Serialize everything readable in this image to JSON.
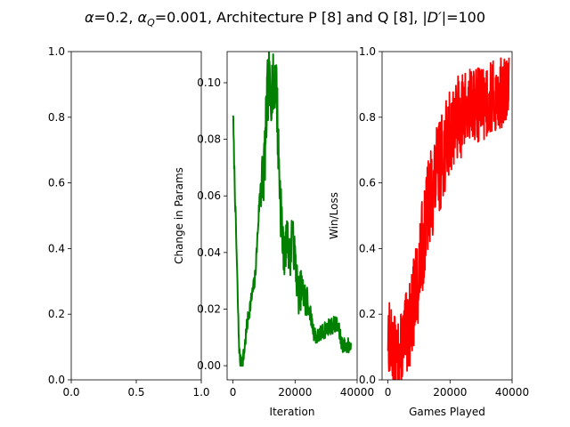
{
  "figure": {
    "title_parts": {
      "alpha": "α",
      "alpha_value": "=0.2, ",
      "alphaq": "α",
      "alphaq_sub": "Q",
      "alphaq_value": "=0.001, Architecture P [8] and Q [8], |",
      "dprime": "D′",
      "dprime_value": "|=100"
    }
  },
  "chart_data": [
    {
      "type": "line",
      "title": "",
      "xlabel": "",
      "ylabel": "",
      "xlim": [
        0,
        1
      ],
      "ylim": [
        0,
        1
      ],
      "xticks": [
        "0.0",
        "0.5",
        "1.0"
      ],
      "yticks": [
        "0.0",
        "0.2",
        "0.4",
        "0.6",
        "0.8",
        "1.0"
      ],
      "series": []
    },
    {
      "type": "line",
      "title": "",
      "xlabel": "Iteration",
      "ylabel": "Change in Params",
      "xlim": [
        -1900,
        40000
      ],
      "ylim": [
        -0.005,
        0.111
      ],
      "xticks": [
        "0",
        "20000",
        "40000"
      ],
      "yticks": [
        "0.00",
        "0.02",
        "0.04",
        "0.06",
        "0.08",
        "0.10"
      ],
      "color": "#008000",
      "series": [
        {
          "x": [
            0,
            300,
            600,
            900,
            1200,
            1500,
            1800,
            2100,
            2400,
            2700,
            3000,
            3500,
            4000,
            4500,
            5000,
            5500,
            6000,
            6500,
            7000,
            7500,
            8000,
            8500,
            9000,
            9500,
            10000,
            10500,
            11000,
            11500,
            12000,
            12500,
            13000,
            13500,
            14000,
            14500,
            15000,
            15500,
            16000,
            16500,
            17000,
            17500,
            18000,
            18500,
            19000,
            19500,
            20000,
            21000,
            22000,
            23000,
            24000,
            25000,
            26000,
            27000,
            28000,
            29000,
            30000,
            31000,
            32000,
            33000,
            34000,
            35000,
            36000,
            37000,
            38000
          ],
          "y": [
            0.09,
            0.075,
            0.062,
            0.05,
            0.038,
            0.025,
            0.012,
            0.004,
            0.001,
            0.0,
            0.001,
            0.004,
            0.009,
            0.014,
            0.018,
            0.021,
            0.024,
            0.027,
            0.03,
            0.038,
            0.048,
            0.058,
            0.066,
            0.065,
            0.07,
            0.08,
            0.095,
            0.1,
            0.095,
            0.1,
            0.098,
            0.102,
            0.1,
            0.08,
            0.065,
            0.055,
            0.044,
            0.038,
            0.042,
            0.046,
            0.04,
            0.038,
            0.05,
            0.042,
            0.038,
            0.025,
            0.027,
            0.024,
            0.022,
            0.018,
            0.012,
            0.01,
            0.011,
            0.012,
            0.013,
            0.014,
            0.014,
            0.015,
            0.013,
            0.008,
            0.007,
            0.007,
            0.007
          ]
        }
      ]
    },
    {
      "type": "line",
      "title": "",
      "xlabel": "Games Played",
      "ylabel": "Win/Loss",
      "xlim": [
        -1900,
        40000
      ],
      "ylim": [
        0,
        1
      ],
      "xticks": [
        "0",
        "20000",
        "40000"
      ],
      "yticks": [
        "0.0",
        "0.2",
        "0.4",
        "0.6",
        "0.8",
        "1.0"
      ],
      "color": "#ff0000",
      "series": [
        {
          "x": [
            0,
            1000,
            2000,
            3000,
            4000,
            5000,
            6000,
            7000,
            8000,
            9000,
            10000,
            11000,
            12000,
            13000,
            14000,
            15000,
            16000,
            17000,
            18000,
            19000,
            20000,
            21000,
            22000,
            23000,
            24000,
            25000,
            26000,
            27000,
            28000,
            29000,
            30000,
            31000,
            32000,
            33000,
            34000,
            35000,
            36000,
            37000,
            38000,
            39000
          ],
          "y": [
            0.15,
            0.1,
            0.08,
            0.06,
            0.08,
            0.12,
            0.14,
            0.17,
            0.22,
            0.27,
            0.33,
            0.4,
            0.47,
            0.53,
            0.57,
            0.6,
            0.64,
            0.66,
            0.7,
            0.72,
            0.76,
            0.78,
            0.79,
            0.8,
            0.81,
            0.82,
            0.82,
            0.83,
            0.83,
            0.84,
            0.84,
            0.85,
            0.85,
            0.86,
            0.86,
            0.86,
            0.87,
            0.87,
            0.88,
            0.88
          ],
          "band": [
            0.12,
            0.12,
            0.12,
            0.12,
            0.12,
            0.12,
            0.13,
            0.13,
            0.14,
            0.14,
            0.14,
            0.15,
            0.15,
            0.15,
            0.15,
            0.15,
            0.14,
            0.14,
            0.14,
            0.14,
            0.13,
            0.13,
            0.13,
            0.13,
            0.13,
            0.13,
            0.13,
            0.12,
            0.12,
            0.12,
            0.12,
            0.12,
            0.12,
            0.12,
            0.11,
            0.11,
            0.11,
            0.11,
            0.11,
            0.11
          ]
        }
      ]
    }
  ]
}
